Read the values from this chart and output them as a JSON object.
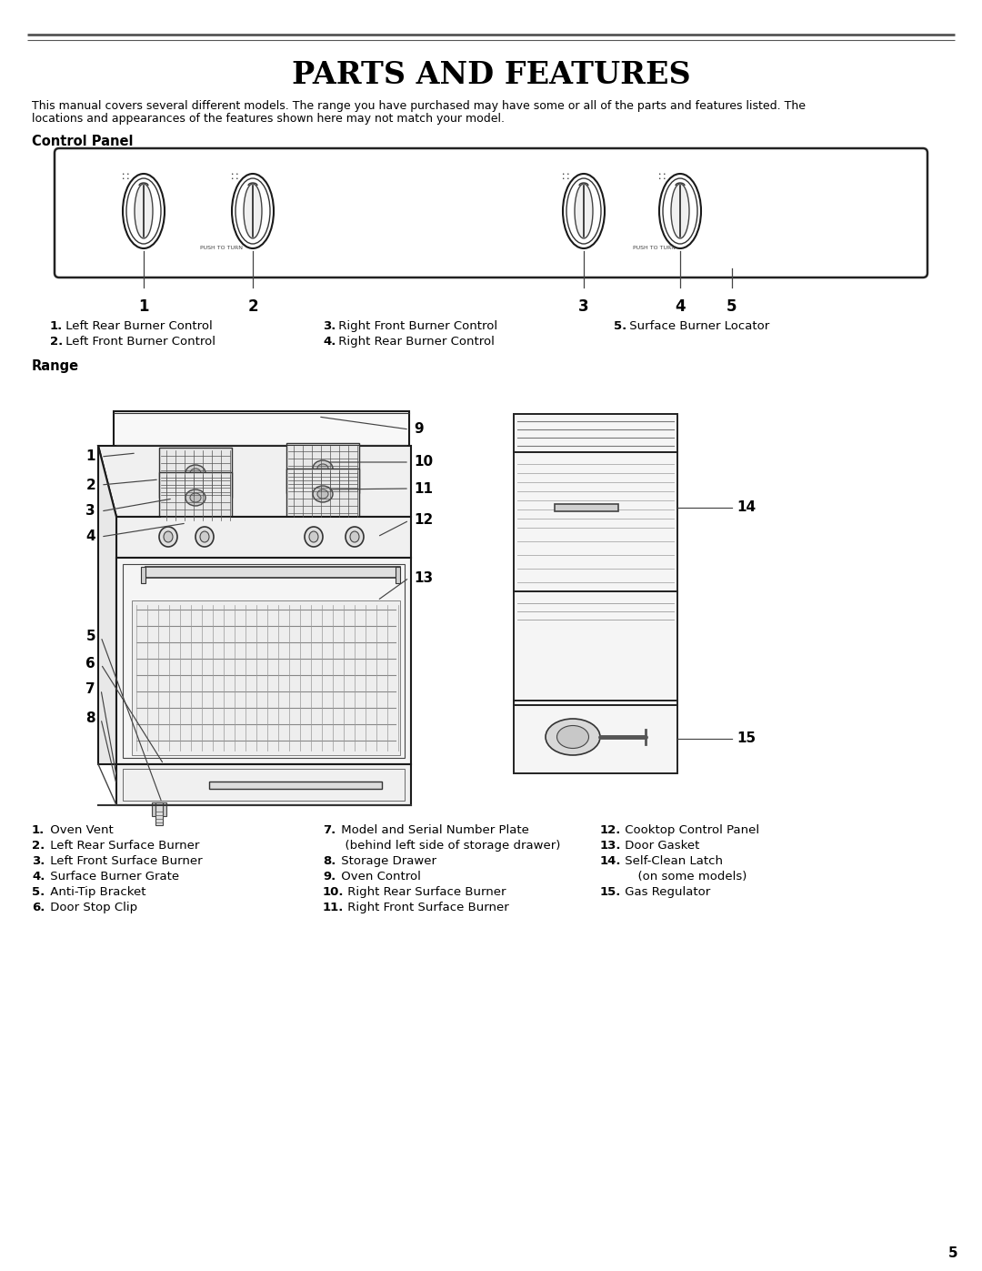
{
  "title": "PARTS AND FEATURES",
  "subtitle_line1": "This manual covers several different models. The range you have purchased may have some or all of the parts and features listed. The",
  "subtitle_line2": "locations and appearances of the features shown here may not match your model.",
  "section1": "Control Panel",
  "section2": "Range",
  "page_number": "5",
  "bg_color": "#ffffff",
  "cp_labels_left": [
    [
      "1.",
      " Left Rear Burner Control"
    ],
    [
      "2.",
      " Left Front Burner Control"
    ]
  ],
  "cp_labels_mid": [
    [
      "3.",
      " Right Front Burner Control"
    ],
    [
      "4.",
      " Right Rear Burner Control"
    ]
  ],
  "cp_labels_right": [
    [
      "5.",
      " Surface Burner Locator"
    ]
  ],
  "bottom_col1": [
    [
      "1.",
      " Oven Vent"
    ],
    [
      "2.",
      " Left Rear Surface Burner"
    ],
    [
      "3.",
      " Left Front Surface Burner"
    ],
    [
      "4.",
      " Surface Burner Grate"
    ],
    [
      "5.",
      " Anti-Tip Bracket"
    ],
    [
      "6.",
      " Door Stop Clip"
    ]
  ],
  "bottom_col2": [
    [
      "7.",
      " Model and Serial Number Plate"
    ],
    [
      "",
      "  (behind left side of storage drawer)"
    ],
    [
      "8.",
      " Storage Drawer"
    ],
    [
      "9.",
      " Oven Control"
    ],
    [
      "10.",
      " Right Rear Surface Burner"
    ],
    [
      "11.",
      " Right Front Surface Burner"
    ]
  ],
  "bottom_col3": [
    [
      "12.",
      " Cooktop Control Panel"
    ],
    [
      "13.",
      " Door Gasket"
    ],
    [
      "14.",
      " Self-Clean Latch"
    ],
    [
      "",
      "      (on some models)"
    ],
    [
      "15.",
      " Gas Regulator"
    ]
  ]
}
